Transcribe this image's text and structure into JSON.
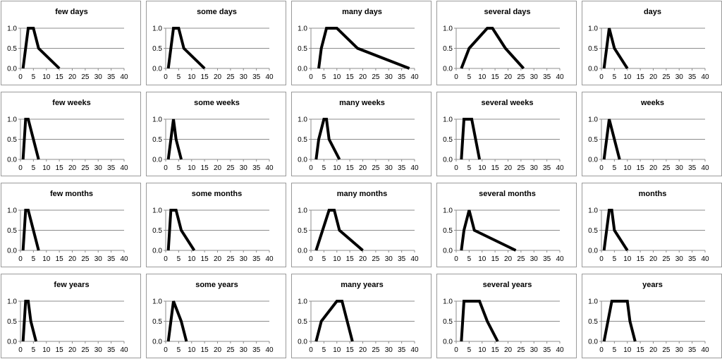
{
  "style": {
    "line_color": "#000000",
    "grid_color": "#8c8c8c",
    "axis_color": "#8c8c8c",
    "border_color": "#9a9a9a"
  },
  "chart_data": [
    {
      "type": "line",
      "title": "few days",
      "xlim": [
        0,
        40
      ],
      "ylim": [
        0,
        1
      ],
      "xticks": [
        0,
        5,
        10,
        15,
        20,
        25,
        30,
        35,
        40
      ],
      "yticks": [
        "0.0",
        "0.5",
        "1.0"
      ],
      "grid": true,
      "x": [
        1,
        3,
        5,
        7,
        15
      ],
      "y": [
        0,
        1,
        1,
        0.5,
        0
      ]
    },
    {
      "type": "line",
      "title": "some days",
      "xlim": [
        0,
        40
      ],
      "ylim": [
        0,
        1
      ],
      "xticks": [
        0,
        5,
        10,
        15,
        20,
        25,
        30,
        35,
        40
      ],
      "yticks": [
        "0.0",
        "0.5",
        "1.0"
      ],
      "grid": true,
      "x": [
        1,
        3,
        5,
        7,
        15
      ],
      "y": [
        0,
        1,
        1,
        0.5,
        0
      ]
    },
    {
      "type": "line",
      "title": "many days",
      "xlim": [
        0,
        40
      ],
      "ylim": [
        0,
        1
      ],
      "xticks": [
        0,
        5,
        10,
        15,
        20,
        25,
        30,
        35,
        40
      ],
      "yticks": [
        "0.0",
        "0.5",
        "1.0"
      ],
      "grid": true,
      "x": [
        3,
        4,
        6,
        10,
        18,
        38
      ],
      "y": [
        0,
        0.5,
        1,
        1,
        0.5,
        0
      ]
    },
    {
      "type": "line",
      "title": "several days",
      "xlim": [
        0,
        40
      ],
      "ylim": [
        0,
        1
      ],
      "xticks": [
        0,
        5,
        10,
        15,
        20,
        25,
        30,
        35,
        40
      ],
      "yticks": [
        "0.0",
        "0.5",
        "1.0"
      ],
      "grid": true,
      "x": [
        2,
        5,
        12,
        14,
        19,
        26
      ],
      "y": [
        0,
        0.5,
        1,
        1,
        0.5,
        0
      ]
    },
    {
      "type": "line",
      "title": "days",
      "xlim": [
        0,
        40
      ],
      "ylim": [
        0,
        1
      ],
      "xticks": [
        0,
        5,
        10,
        15,
        20,
        25,
        30,
        35,
        40
      ],
      "yticks": [
        "0.0",
        "0.5",
        "1.0"
      ],
      "grid": true,
      "x": [
        1,
        3,
        5,
        10
      ],
      "y": [
        0,
        1,
        0.5,
        0
      ]
    },
    {
      "type": "line",
      "title": "few weeks",
      "xlim": [
        0,
        40
      ],
      "ylim": [
        0,
        1
      ],
      "xticks": [
        0,
        5,
        10,
        15,
        20,
        25,
        30,
        35,
        40
      ],
      "yticks": [
        "0.0",
        "0.5",
        "1.0"
      ],
      "grid": true,
      "x": [
        1,
        2,
        3,
        5,
        7
      ],
      "y": [
        0,
        1,
        1,
        0.5,
        0
      ]
    },
    {
      "type": "line",
      "title": "some weeks",
      "xlim": [
        0,
        40
      ],
      "ylim": [
        0,
        1
      ],
      "xticks": [
        0,
        5,
        10,
        15,
        20,
        25,
        30,
        35,
        40
      ],
      "yticks": [
        "0.0",
        "0.5",
        "1.0"
      ],
      "grid": true,
      "x": [
        1,
        3,
        4,
        6
      ],
      "y": [
        0,
        1,
        0.5,
        0
      ]
    },
    {
      "type": "line",
      "title": "many weeks",
      "xlim": [
        0,
        40
      ],
      "ylim": [
        0,
        1
      ],
      "xticks": [
        0,
        5,
        10,
        15,
        20,
        25,
        30,
        35,
        40
      ],
      "yticks": [
        "0.0",
        "0.5",
        "1.0"
      ],
      "grid": true,
      "x": [
        2,
        3,
        5,
        6,
        7,
        11
      ],
      "y": [
        0,
        0.5,
        1,
        1,
        0.5,
        0
      ]
    },
    {
      "type": "line",
      "title": "several weeks",
      "xlim": [
        0,
        40
      ],
      "ylim": [
        0,
        1
      ],
      "xticks": [
        0,
        5,
        10,
        15,
        20,
        25,
        30,
        35,
        40
      ],
      "yticks": [
        "0.0",
        "0.5",
        "1.0"
      ],
      "grid": true,
      "x": [
        2,
        3,
        6,
        9
      ],
      "y": [
        0,
        1,
        1,
        0
      ]
    },
    {
      "type": "line",
      "title": "weeks",
      "xlim": [
        0,
        40
      ],
      "ylim": [
        0,
        1
      ],
      "xticks": [
        0,
        5,
        10,
        15,
        20,
        25,
        30,
        35,
        40
      ],
      "yticks": [
        "0.0",
        "0.5",
        "1.0"
      ],
      "grid": true,
      "x": [
        1,
        3,
        5,
        7
      ],
      "y": [
        0,
        1,
        0.5,
        0
      ]
    },
    {
      "type": "line",
      "title": "few months",
      "xlim": [
        0,
        40
      ],
      "ylim": [
        0,
        1
      ],
      "xticks": [
        0,
        5,
        10,
        15,
        20,
        25,
        30,
        35,
        40
      ],
      "yticks": [
        "0.0",
        "0.5",
        "1.0"
      ],
      "grid": true,
      "x": [
        1,
        2,
        3,
        5,
        7
      ],
      "y": [
        0,
        1,
        1,
        0.5,
        0
      ]
    },
    {
      "type": "line",
      "title": "some months",
      "xlim": [
        0,
        40
      ],
      "ylim": [
        0,
        1
      ],
      "xticks": [
        0,
        5,
        10,
        15,
        20,
        25,
        30,
        35,
        40
      ],
      "yticks": [
        "0.0",
        "0.5",
        "1.0"
      ],
      "grid": true,
      "x": [
        1,
        2,
        4,
        6,
        11
      ],
      "y": [
        0,
        1,
        1,
        0.5,
        0
      ]
    },
    {
      "type": "line",
      "title": "many months",
      "xlim": [
        0,
        40
      ],
      "ylim": [
        0,
        1
      ],
      "xticks": [
        0,
        5,
        10,
        15,
        20,
        25,
        30,
        35,
        40
      ],
      "yticks": [
        "0.0",
        "0.5",
        "1.0"
      ],
      "grid": true,
      "x": [
        2,
        7,
        9,
        11,
        20
      ],
      "y": [
        0,
        1,
        1,
        0.5,
        0
      ]
    },
    {
      "type": "line",
      "title": "several months",
      "xlim": [
        0,
        40
      ],
      "ylim": [
        0,
        1
      ],
      "xticks": [
        0,
        5,
        10,
        15,
        20,
        25,
        30,
        35,
        40
      ],
      "yticks": [
        "0.0",
        "0.5",
        "1.0"
      ],
      "grid": true,
      "x": [
        2,
        3,
        5,
        7,
        23
      ],
      "y": [
        0,
        0.5,
        1,
        0.5,
        0
      ]
    },
    {
      "type": "line",
      "title": "months",
      "xlim": [
        0,
        40
      ],
      "ylim": [
        0,
        1
      ],
      "xticks": [
        0,
        5,
        10,
        15,
        20,
        25,
        30,
        35,
        40
      ],
      "yticks": [
        "0.0",
        "0.5",
        "1.0"
      ],
      "grid": true,
      "x": [
        1,
        3,
        4,
        5,
        10
      ],
      "y": [
        0,
        1,
        1,
        0.5,
        0
      ]
    },
    {
      "type": "line",
      "title": "few years",
      "xlim": [
        0,
        40
      ],
      "ylim": [
        0,
        1
      ],
      "xticks": [
        0,
        5,
        10,
        15,
        20,
        25,
        30,
        35,
        40
      ],
      "yticks": [
        "0.0",
        "0.5",
        "1.0"
      ],
      "grid": true,
      "x": [
        1,
        2,
        3,
        4,
        6
      ],
      "y": [
        0,
        1,
        1,
        0.5,
        0
      ]
    },
    {
      "type": "line",
      "title": "some years",
      "xlim": [
        0,
        40
      ],
      "ylim": [
        0,
        1
      ],
      "xticks": [
        0,
        5,
        10,
        15,
        20,
        25,
        30,
        35,
        40
      ],
      "yticks": [
        "0.0",
        "0.5",
        "1.0"
      ],
      "grid": true,
      "x": [
        1,
        2,
        3,
        6,
        8
      ],
      "y": [
        0,
        0.5,
        1,
        0.5,
        0
      ]
    },
    {
      "type": "line",
      "title": "many years",
      "xlim": [
        0,
        40
      ],
      "ylim": [
        0,
        1
      ],
      "xticks": [
        0,
        5,
        10,
        15,
        20,
        25,
        30,
        35,
        40
      ],
      "yticks": [
        "0.0",
        "0.5",
        "1.0"
      ],
      "grid": true,
      "x": [
        2,
        4,
        10,
        12,
        14,
        16
      ],
      "y": [
        0,
        0.5,
        1,
        1,
        0.5,
        0
      ]
    },
    {
      "type": "line",
      "title": "several years",
      "xlim": [
        0,
        40
      ],
      "ylim": [
        0,
        1
      ],
      "xticks": [
        0,
        5,
        10,
        15,
        20,
        25,
        30,
        35,
        40
      ],
      "yticks": [
        "0.0",
        "0.5",
        "1.0"
      ],
      "grid": true,
      "x": [
        2,
        3,
        7,
        9,
        12,
        16
      ],
      "y": [
        0,
        1,
        1,
        1,
        0.5,
        0
      ]
    },
    {
      "type": "line",
      "title": "years",
      "xlim": [
        0,
        40
      ],
      "ylim": [
        0,
        1
      ],
      "xticks": [
        0,
        5,
        10,
        15,
        20,
        25,
        30,
        35,
        40
      ],
      "yticks": [
        "0.0",
        "0.5",
        "1.0"
      ],
      "grid": true,
      "x": [
        1,
        4,
        8,
        10,
        11,
        13
      ],
      "y": [
        0,
        1,
        1,
        1,
        0.5,
        0
      ]
    }
  ]
}
